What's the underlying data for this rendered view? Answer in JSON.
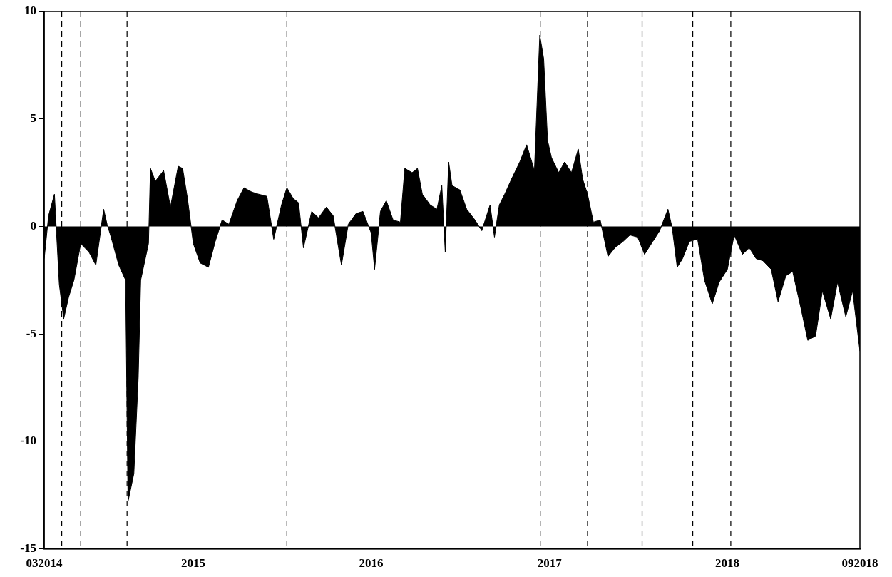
{
  "chart_data": {
    "type": "area",
    "x": [
      "2014-03-01",
      "2014-03-10",
      "2014-03-22",
      "2014-04-01",
      "2014-04-10",
      "2014-04-20",
      "2014-05-01",
      "2014-05-15",
      "2014-06-01",
      "2014-06-15",
      "2014-07-01",
      "2014-07-08",
      "2014-07-15",
      "2014-08-01",
      "2014-08-15",
      "2014-08-20",
      "2014-09-01",
      "2014-09-10",
      "2014-09-15",
      "2014-10-01",
      "2014-10-05",
      "2014-10-15",
      "2014-11-01",
      "2014-11-15",
      "2014-12-01",
      "2014-12-10",
      "2014-12-20",
      "2015-01-01",
      "2015-01-15",
      "2015-02-01",
      "2015-02-15",
      "2015-03-01",
      "2015-03-15",
      "2015-04-01",
      "2015-04-15",
      "2015-05-01",
      "2015-05-15",
      "2015-06-01",
      "2015-06-15",
      "2015-07-01",
      "2015-07-12",
      "2015-07-25",
      "2015-08-05",
      "2015-08-15",
      "2015-09-01",
      "2015-09-15",
      "2015-10-01",
      "2015-10-15",
      "2015-11-01",
      "2015-11-15",
      "2015-12-01",
      "2015-12-15",
      "2016-01-01",
      "2016-01-08",
      "2016-01-20",
      "2016-02-01",
      "2016-02-15",
      "2016-03-01",
      "2016-03-10",
      "2016-03-25",
      "2016-04-05",
      "2016-04-15",
      "2016-05-01",
      "2016-05-15",
      "2016-05-25",
      "2016-06-01",
      "2016-06-08",
      "2016-06-15",
      "2016-07-01",
      "2016-07-15",
      "2016-08-01",
      "2016-08-15",
      "2016-09-01",
      "2016-09-10",
      "2016-09-20",
      "2016-10-01",
      "2016-10-15",
      "2016-11-01",
      "2016-11-15",
      "2016-12-01",
      "2016-12-12",
      "2016-12-20",
      "2016-12-28",
      "2017-01-05",
      "2017-01-20",
      "2017-02-01",
      "2017-02-15",
      "2017-03-01",
      "2017-03-10",
      "2017-03-20",
      "2017-04-01",
      "2017-04-15",
      "2017-05-01",
      "2017-05-15",
      "2017-06-01",
      "2017-06-15",
      "2017-07-01",
      "2017-07-15",
      "2017-08-01",
      "2017-08-15",
      "2017-09-01",
      "2017-09-10",
      "2017-09-20",
      "2017-10-01",
      "2017-10-15",
      "2017-11-01",
      "2017-11-15",
      "2017-12-01",
      "2017-12-15",
      "2018-01-01",
      "2018-01-15",
      "2018-02-01",
      "2018-02-15",
      "2018-03-01",
      "2018-03-15",
      "2018-04-01",
      "2018-04-15",
      "2018-05-01",
      "2018-05-15",
      "2018-06-01",
      "2018-06-15",
      "2018-07-01",
      "2018-07-15",
      "2018-08-01",
      "2018-08-15",
      "2018-09-01",
      "2018-09-15",
      "2018-09-30"
    ],
    "values": [
      -1.5,
      0.5,
      1.5,
      -2.7,
      -4.3,
      -3.3,
      -2.5,
      -0.8,
      -1.2,
      -1.8,
      0.8,
      0.1,
      -0.4,
      -1.8,
      -2.5,
      -12.8,
      -11.5,
      -7,
      -2.5,
      -0.8,
      2.7,
      2.1,
      2.6,
      0.9,
      2.8,
      2.7,
      1.3,
      -0.8,
      -1.7,
      -1.9,
      -0.7,
      0.3,
      0.1,
      1.2,
      1.8,
      1.6,
      1.5,
      1.4,
      -0.6,
      1.0,
      1.8,
      1.3,
      1.1,
      -1.0,
      0.7,
      0.4,
      0.9,
      0.5,
      -1.8,
      0.1,
      0.6,
      0.7,
      -0.3,
      -2.0,
      0.7,
      1.2,
      0.3,
      0.2,
      2.7,
      2.5,
      2.7,
      1.5,
      1.0,
      0.8,
      1.9,
      -1.2,
      3.0,
      1.9,
      1.7,
      0.8,
      0.3,
      -0.2,
      1.0,
      -0.5,
      1.0,
      1.5,
      2.2,
      3.0,
      3.8,
      2.6,
      8.9,
      7.8,
      4.0,
      3.2,
      2.5,
      3.0,
      2.5,
      3.6,
      2.2,
      1.5,
      0.2,
      0.3,
      -1.4,
      -1.0,
      -0.7,
      -0.4,
      -0.5,
      -1.3,
      -0.7,
      -0.2,
      0.8,
      -0.1,
      -1.9,
      -1.5,
      -0.7,
      -0.6,
      -2.5,
      -3.6,
      -2.6,
      -2.0,
      -0.4,
      -1.3,
      -1.0,
      -1.5,
      -1.6,
      -2.0,
      -3.5,
      -2.3,
      -2.1,
      -3.8,
      -5.3,
      -5.1,
      -3.0,
      -4.3,
      -2.6,
      -4.2,
      -3.0,
      -5.8
    ],
    "color": "#000000",
    "xlim": [
      "2014-03-01",
      "2018-09-30"
    ],
    "xticks": [
      {
        "value": "2014-03-01",
        "label": "032014"
      },
      {
        "value": "2015-01-01",
        "label": "2015"
      },
      {
        "value": "2016-01-01",
        "label": "2016"
      },
      {
        "value": "2017-01-01",
        "label": "2017"
      },
      {
        "value": "2018-01-01",
        "label": "2018"
      },
      {
        "value": "2018-09-30",
        "label": "092018"
      }
    ],
    "ylim": [
      -15,
      10
    ],
    "yticks": [
      -15,
      -10,
      -5,
      0,
      5,
      10
    ],
    "grid": false,
    "legend": false,
    "ref_lines": [
      {
        "axis": "x",
        "value": "2014-04-06",
        "color": "#000000",
        "line_style": "dashed"
      },
      {
        "axis": "x",
        "value": "2014-05-15",
        "color": "#000000",
        "line_style": "dashed"
      },
      {
        "axis": "x",
        "value": "2014-08-18",
        "color": "#000000",
        "line_style": "dashed"
      },
      {
        "axis": "x",
        "value": "2015-07-12",
        "color": "#000000",
        "line_style": "dashed"
      },
      {
        "axis": "x",
        "value": "2016-12-13",
        "color": "#000000",
        "line_style": "dashed"
      },
      {
        "axis": "x",
        "value": "2017-03-20",
        "color": "#000000",
        "line_style": "dashed"
      },
      {
        "axis": "x",
        "value": "2017-07-10",
        "color": "#000000",
        "line_style": "dashed"
      },
      {
        "axis": "x",
        "value": "2017-10-22",
        "color": "#000000",
        "line_style": "dashed"
      },
      {
        "axis": "x",
        "value": "2018-01-08",
        "color": "#000000",
        "line_style": "dashed"
      }
    ]
  }
}
